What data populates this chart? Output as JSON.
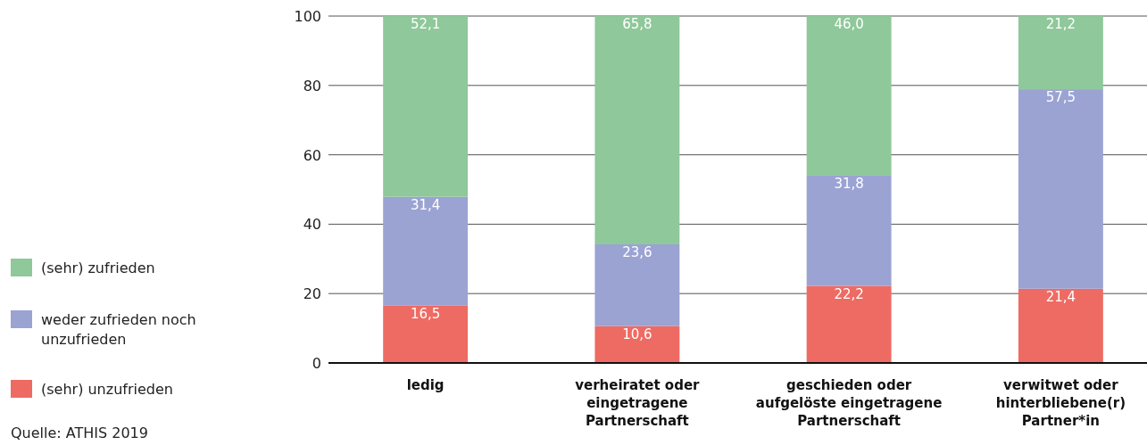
{
  "chart_data": {
    "type": "bar",
    "stacked": true,
    "categories": [
      "ledig",
      "verheiratet oder\neingetragene\nPartnerschaft",
      "geschieden oder\naufgelöste eingetragene\nPartnerschaft",
      "verwitwet oder\nhinterbliebene(r)\nPartner*in"
    ],
    "series": [
      {
        "name": "(sehr) unzufrieden",
        "color": "#ee6b63",
        "values": [
          16.5,
          10.6,
          22.2,
          21.4
        ],
        "value_labels": [
          "16,5",
          "10,6",
          "22,2",
          "21,4"
        ]
      },
      {
        "name": "weder zufrieden noch unzufrieden",
        "color": "#9ba3d3",
        "values": [
          31.4,
          23.6,
          31.8,
          57.5
        ],
        "value_labels": [
          "31,4",
          "23,6",
          "31,8",
          "57,5"
        ]
      },
      {
        "name": "(sehr) zufrieden",
        "color": "#8fc89a",
        "values": [
          52.1,
          65.8,
          46.0,
          21.2
        ],
        "value_labels": [
          "52,1",
          "65,8",
          "46,0",
          "21,2"
        ]
      }
    ],
    "ylim": [
      0,
      100
    ],
    "yticks": [
      0,
      20,
      40,
      60,
      80,
      100
    ],
    "grid": "y",
    "legend": "left",
    "annotations": [
      "Quelle: ATHIS 2019"
    ]
  }
}
